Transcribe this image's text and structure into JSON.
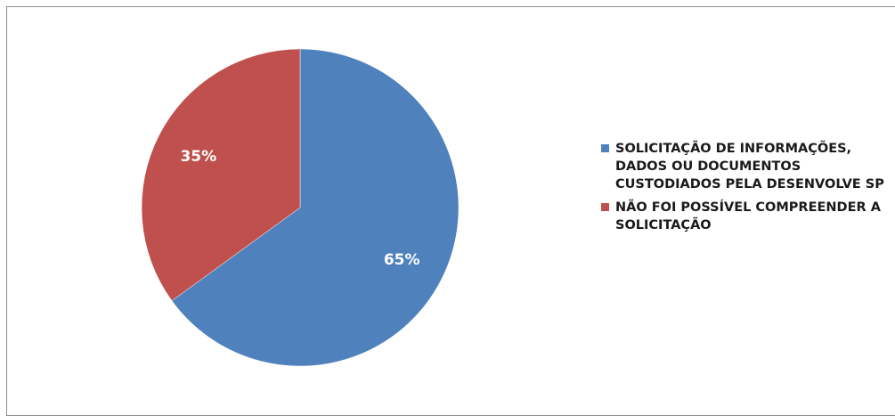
{
  "chart_data": {
    "type": "pie",
    "title": "",
    "start_angle_deg": 0,
    "direction": "clockwise",
    "slices": [
      {
        "label": "SOLICITAÇÃO DE INFORMAÇÕES,\nDADOS OU DOCUMENTOS\nCUSTODIADOS PELA DESENVOLVE SP",
        "value": 65,
        "display": "65%",
        "color": "#4f81bd"
      },
      {
        "label": "NÃO FOI POSSÍVEL COMPREENDER A\nSOLICITAÇÃO",
        "value": 35,
        "display": "35%",
        "color": "#c0504d"
      }
    ],
    "legend_position": "right"
  }
}
